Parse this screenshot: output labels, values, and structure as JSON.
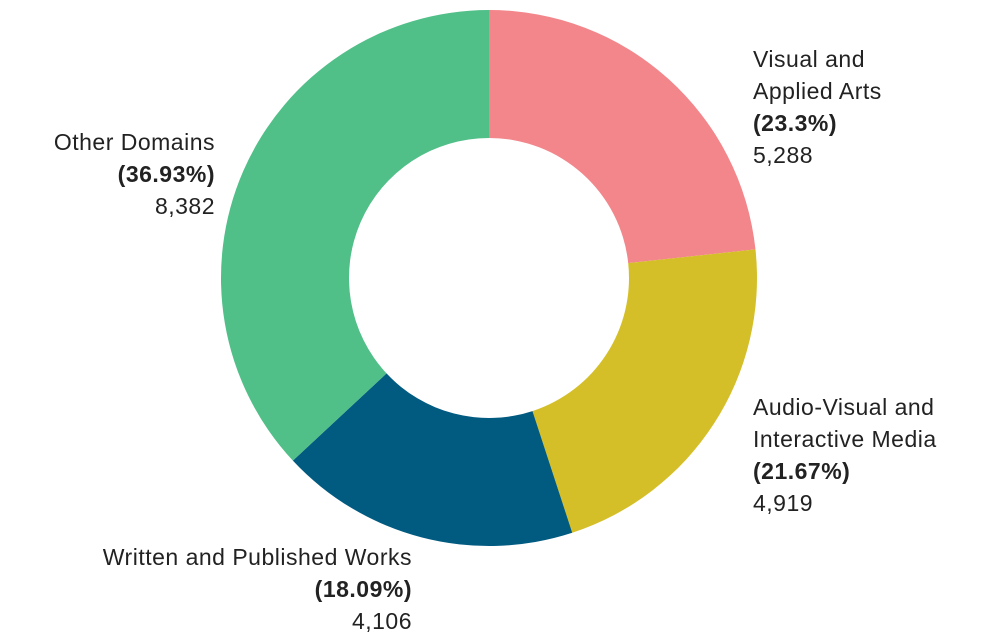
{
  "chart_data": {
    "type": "donut",
    "categories": [
      "Visual and Applied Arts",
      "Audio-Visual and Interactive Media",
      "Written and Published Works",
      "Other Domains"
    ],
    "values": [
      5288,
      4919,
      4106,
      8382
    ],
    "value_labels": [
      "5,288",
      "4,919",
      "4,106",
      "8,382"
    ],
    "percentages": [
      23.3,
      21.67,
      18.09,
      36.93
    ],
    "percentage_labels": [
      "(23.3%)",
      "(21.67%)",
      "(18.09%)",
      "(36.93%)"
    ],
    "colors": [
      "#f2868b",
      "#d4bf28",
      "#015a80",
      "#50bf88"
    ]
  }
}
